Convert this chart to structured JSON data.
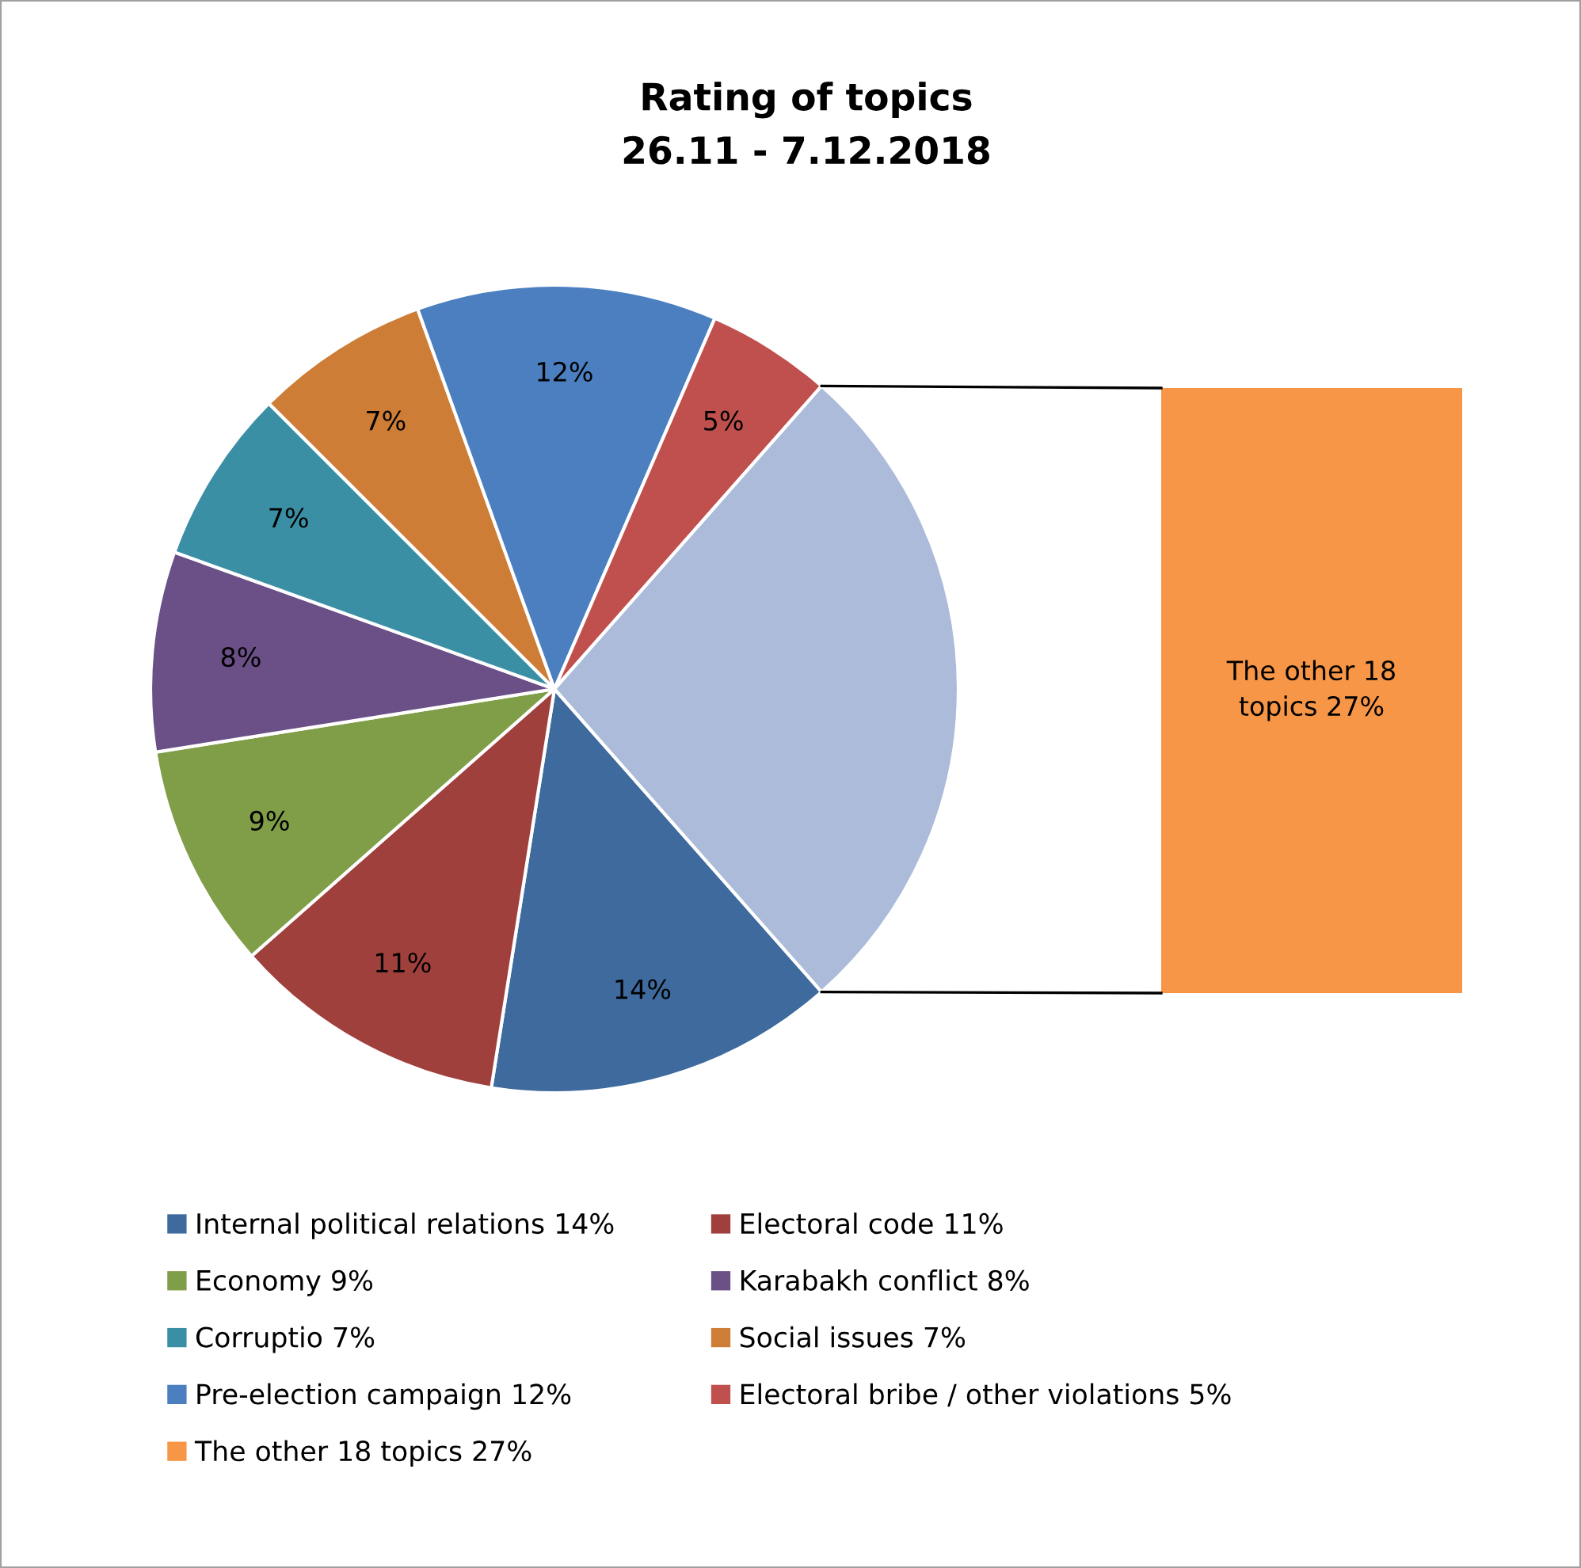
{
  "chart_data": [
    {
      "type": "pie",
      "title": "Rating of topics\n26.11 - 7.12.2018",
      "categories": [
        "Internal political relations 14%",
        "Electoral code 11%",
        "Economy 9%",
        "Karabakh conflict 8%",
        "Corruptio 7%",
        "Social issues 7%",
        "Pre-election campaign 12%",
        "Electoral bribe / other violations 5%",
        null
      ],
      "values": [
        14,
        11,
        9,
        8,
        7,
        7,
        12,
        5,
        27
      ],
      "colors": [
        "#3f6a9d",
        "#a0403d",
        "#809d48",
        "#6a5087",
        "#3b8fa5",
        "#cd7d35",
        "#4b7fc0",
        "#c0504d",
        "#abbbd9"
      ],
      "value_labels": [
        "14%",
        "11%",
        "9%",
        "8%",
        "7%",
        "7%",
        "12%",
        "5%",
        null
      ],
      "legend": "bottom"
    },
    {
      "type": "other",
      "categories": [
        null
      ],
      "legend": "bottom",
      "series": [
        {
          "name": "The other 18 topics 27%",
          "color": "#f79646",
          "values": [
            27
          ],
          "value_labels": [
            "The other 18\ntopics 27%"
          ]
        }
      ]
    }
  ]
}
